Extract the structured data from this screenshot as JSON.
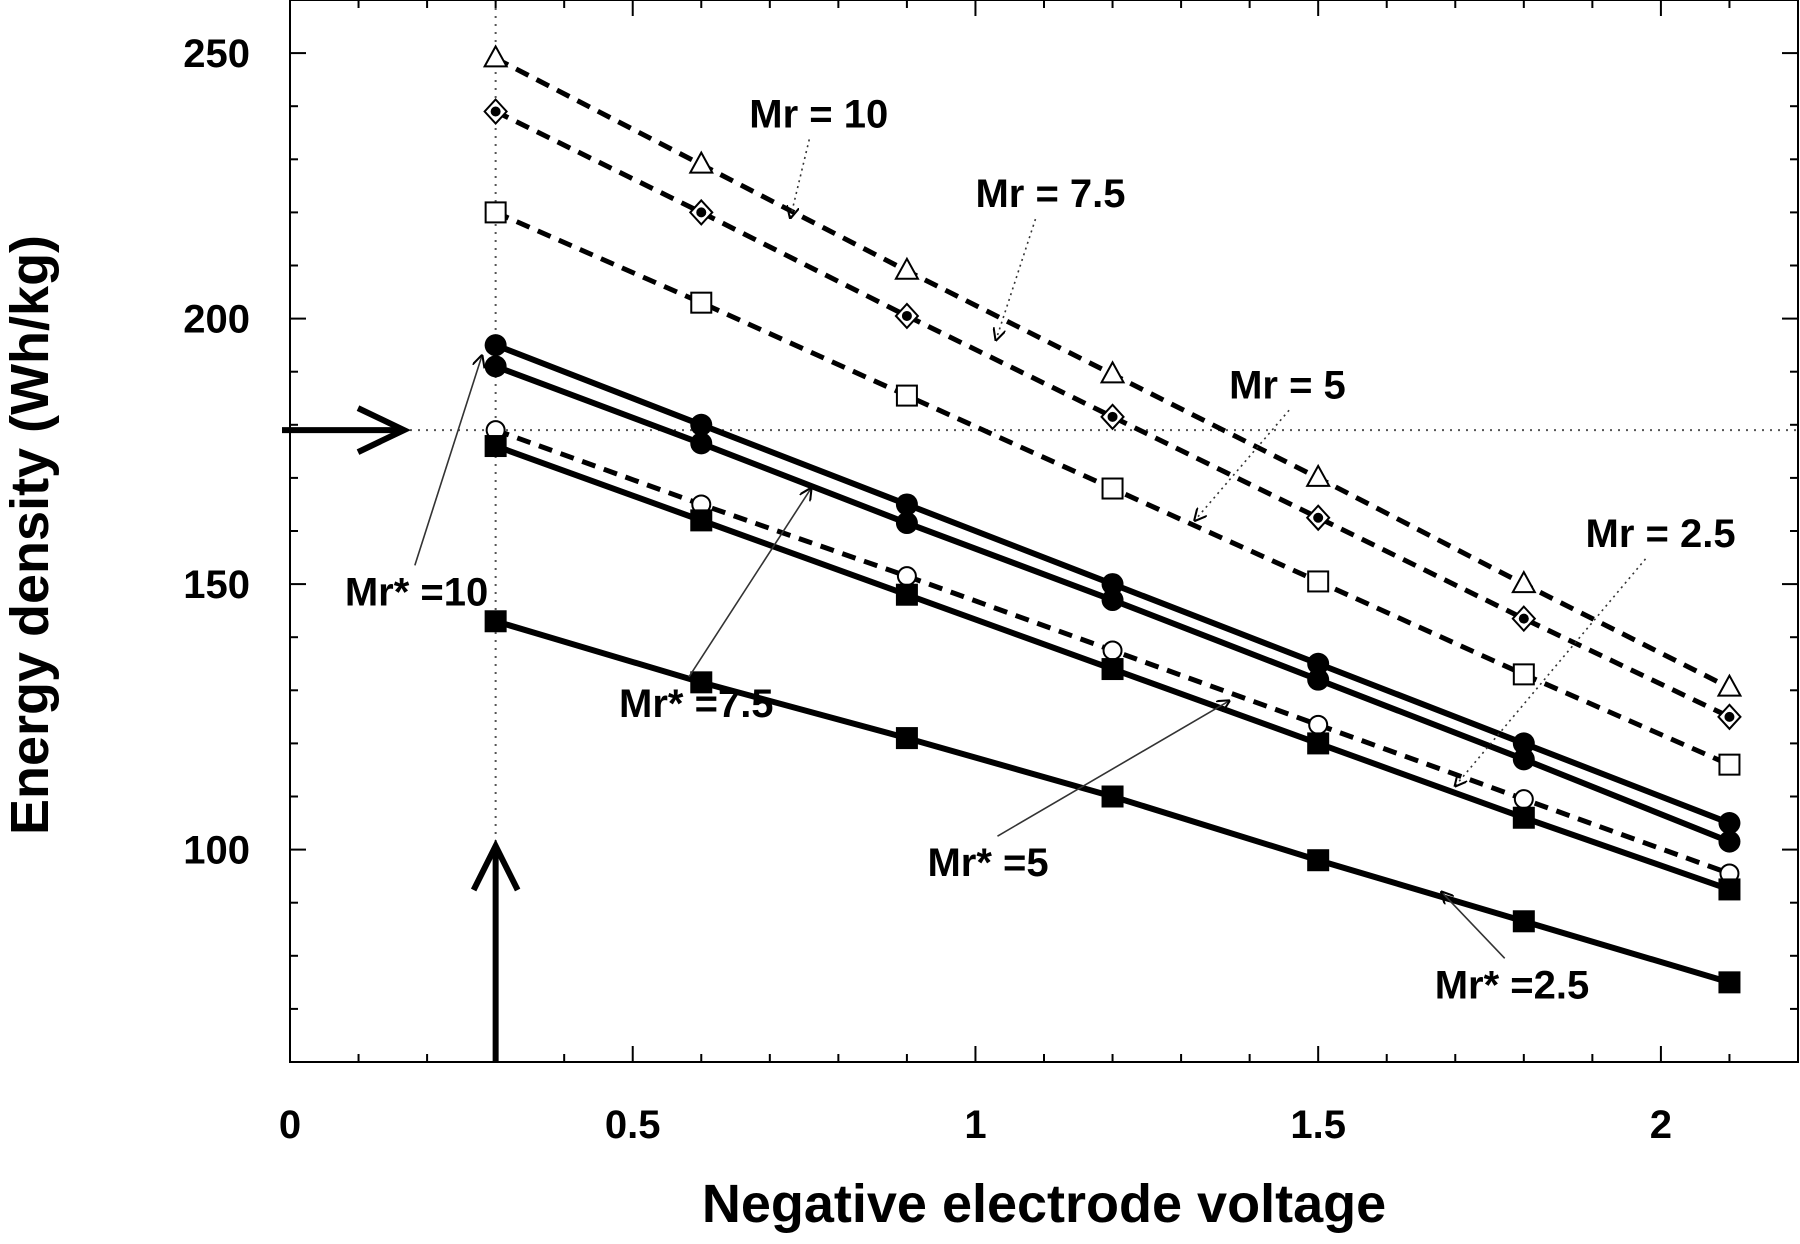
{
  "chart_data": {
    "type": "line",
    "title": "",
    "xlabel": "Negative electrode voltage",
    "ylabel": "Energy density (Wh/kg)",
    "xlim": [
      0,
      2.2
    ],
    "ylim": [
      60,
      260
    ],
    "xticks": [
      0,
      0.5,
      1,
      1.5,
      2
    ],
    "xtick_labels": [
      "0",
      "0.5",
      "1",
      "1.5",
      "2"
    ],
    "yticks": [
      100,
      150,
      200,
      250
    ],
    "ytick_labels": [
      "100",
      "150",
      "200",
      "250"
    ],
    "grid": false,
    "x": [
      0.3,
      0.6,
      0.9,
      1.2,
      1.5,
      1.8,
      2.1
    ],
    "series": [
      {
        "name": "Mr = 10",
        "style": "dashed",
        "marker": "triangle-open",
        "values": [
          249,
          229,
          209,
          189.5,
          170,
          150,
          130.5
        ]
      },
      {
        "name": "Mr = 7.5",
        "style": "dashed",
        "marker": "diamond",
        "values": [
          239,
          220,
          200.5,
          181.5,
          162.5,
          143.5,
          125
        ]
      },
      {
        "name": "Mr = 5",
        "style": "dashed",
        "marker": "square-open",
        "values": [
          220,
          203,
          185.5,
          168,
          150.5,
          133,
          116
        ]
      },
      {
        "name": "Mr = 2.5",
        "style": "dashed",
        "marker": "circle-open",
        "values": [
          179,
          165,
          151.5,
          137.5,
          123.5,
          109.5,
          95.5
        ]
      },
      {
        "name": "Mr* =10",
        "style": "solid",
        "marker": "circle-filled",
        "values": [
          195,
          180,
          165,
          150,
          135,
          120,
          105
        ]
      },
      {
        "name": "Mr* =7.5",
        "style": "solid",
        "marker": "circle-filled",
        "values": [
          191,
          176.5,
          161.5,
          147,
          132,
          117,
          101.5
        ]
      },
      {
        "name": "Mr* =5",
        "style": "solid",
        "marker": "square-filled",
        "values": [
          176,
          162,
          148,
          134,
          120,
          106,
          92.5
        ]
      },
      {
        "name": "Mr* =2.5",
        "style": "solid",
        "marker": "square-filled",
        "values": [
          143,
          131.5,
          121,
          110,
          98,
          86.5,
          75
        ]
      }
    ],
    "reference_lines": {
      "x": 0.3,
      "y": 179
    },
    "annotations": [
      {
        "text": "Mr = 10",
        "x": 0.67,
        "y": 236,
        "target_x": 0.73,
        "target_y": 219
      },
      {
        "text": "Mr = 7.5",
        "x": 1.0,
        "y": 221,
        "target_x": 1.03,
        "target_y": 196
      },
      {
        "text": "Mr = 5",
        "x": 1.37,
        "y": 185,
        "target_x": 1.32,
        "target_y": 162
      },
      {
        "text": "Mr = 2.5",
        "x": 1.89,
        "y": 157,
        "target_x": 1.7,
        "target_y": 112
      },
      {
        "text": "Mr* =10",
        "x": 0.08,
        "y": 146,
        "target_x": 0.28,
        "target_y": 193
      },
      {
        "text": "Mr* =7.5",
        "x": 0.48,
        "y": 125,
        "target_x": 0.76,
        "target_y": 168
      },
      {
        "text": "Mr* =5",
        "x": 0.93,
        "y": 95,
        "target_x": 1.37,
        "target_y": 128
      },
      {
        "text": "Mr* =2.5",
        "x": 1.67,
        "y": 72,
        "target_x": 1.68,
        "target_y": 92
      }
    ],
    "left_arrow_y": 179,
    "bottom_arrow_x": 0.3
  }
}
